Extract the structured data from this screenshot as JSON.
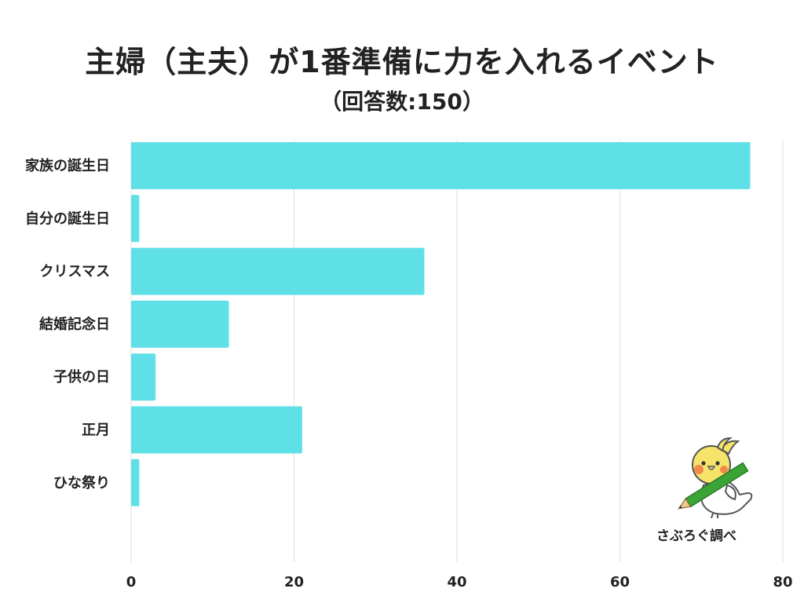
{
  "chart_data": {
    "type": "bar",
    "orientation": "horizontal",
    "title": "主婦（主夫）が1番準備に力を入れるイベント",
    "subtitle": "（回答数:150）",
    "categories": [
      "家族の誕生日",
      "自分の誕生日",
      "クリスマス",
      "結婚記念日",
      "子供の日",
      "正月",
      "ひな祭り"
    ],
    "values": [
      76,
      1,
      36,
      12,
      3,
      21,
      1
    ],
    "xlim": [
      0,
      80
    ],
    "xticks": [
      0,
      20,
      40,
      60,
      80
    ],
    "grid": true,
    "bar_color": "#5ee0e6",
    "grid_color": "#dddddd"
  },
  "credit": "さぶろぐ調べ",
  "mascot_icon": "cockatiel-with-pencil-icon"
}
